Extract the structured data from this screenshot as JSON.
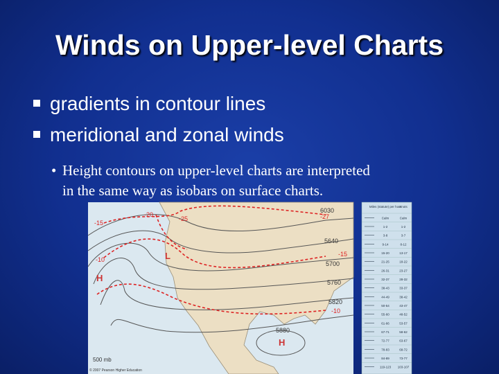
{
  "title": "Winds on Upper-level Charts",
  "bullets": [
    "gradients in contour lines",
    "meridional and zonal winds"
  ],
  "sub_bullet": [
    "Height contours on upper-level charts are interpreted",
    "in the same way as isobars on surface charts."
  ],
  "map": {
    "contour_labels": [
      "5640",
      "5700",
      "5760",
      "5820",
      "5880",
      "6030"
    ],
    "temperature_labels": [
      "-15",
      "-20",
      "-25",
      "-27",
      "-10",
      "-15",
      "-10"
    ],
    "pressure_labels": [
      "L",
      "H",
      "H"
    ],
    "level": "500 mb",
    "credit": "© 2007 Pearson Higher Education"
  },
  "legend": {
    "headers": [
      "Miles (statute) per hour",
      "Knots"
    ],
    "rows": [
      [
        "Calm",
        "Calm"
      ],
      [
        "1-2",
        "1-2"
      ],
      [
        "3-8",
        "3-7"
      ],
      [
        "9-14",
        "8-12"
      ],
      [
        "15-20",
        "13-17"
      ],
      [
        "21-25",
        "18-22"
      ],
      [
        "26-31",
        "23-27"
      ],
      [
        "32-37",
        "28-32"
      ],
      [
        "38-43",
        "33-37"
      ],
      [
        "44-49",
        "38-42"
      ],
      [
        "50-54",
        "43-47"
      ],
      [
        "55-60",
        "48-52"
      ],
      [
        "61-66",
        "53-57"
      ],
      [
        "67-71",
        "58-62"
      ],
      [
        "72-77",
        "63-67"
      ],
      [
        "78-83",
        "68-72"
      ],
      [
        "84-89",
        "73-77"
      ],
      [
        "119-123",
        "103-107"
      ]
    ]
  }
}
